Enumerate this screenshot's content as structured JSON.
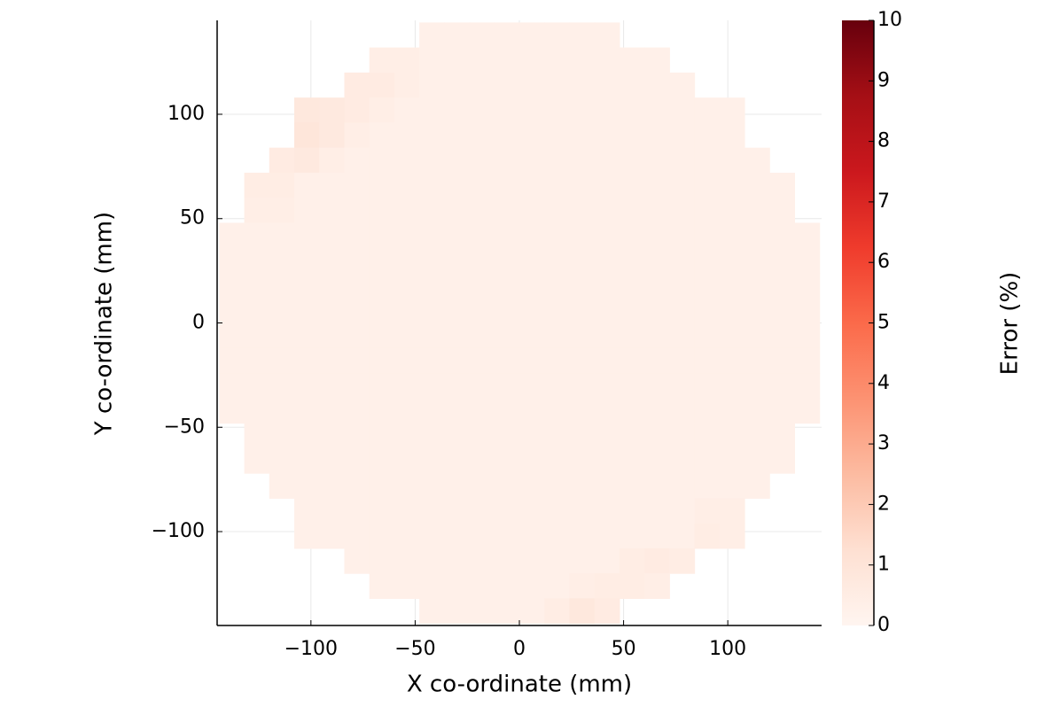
{
  "chart_data": {
    "type": "heatmap",
    "x_label": "X co-ordinate (mm)",
    "y_label": "Y co-ordinate (mm)",
    "colorbar_label": "Error (%)",
    "x": [
      -138,
      -126,
      -114,
      -102,
      -90,
      -78,
      -66,
      -54,
      -42,
      -30,
      -18,
      -6,
      6,
      18,
      30,
      42,
      54,
      66,
      78,
      90,
      102,
      114,
      126,
      138
    ],
    "y": [
      138,
      126,
      114,
      102,
      90,
      78,
      66,
      54,
      42,
      30,
      18,
      6,
      -6,
      -18,
      -30,
      -42,
      -54,
      -66,
      -78,
      -90,
      -102,
      -114,
      -126,
      -138
    ],
    "z": [
      [
        null,
        null,
        null,
        null,
        null,
        null,
        null,
        null,
        0.3,
        0.3,
        0.3,
        0.3,
        0.3,
        0.3,
        0.3,
        0.3,
        null,
        null,
        null,
        null,
        null,
        null,
        null,
        null
      ],
      [
        null,
        null,
        null,
        null,
        null,
        null,
        0.4,
        0.4,
        0.3,
        0.3,
        0.3,
        0.3,
        0.3,
        0.3,
        0.3,
        0.3,
        0.3,
        0.3,
        null,
        null,
        null,
        null,
        null,
        null
      ],
      [
        null,
        null,
        null,
        null,
        null,
        0.6,
        0.6,
        0.4,
        0.3,
        0.3,
        0.3,
        0.3,
        0.3,
        0.3,
        0.3,
        0.3,
        0.3,
        0.3,
        0.3,
        null,
        null,
        null,
        null,
        null
      ],
      [
        null,
        null,
        null,
        0.8,
        0.7,
        0.6,
        0.4,
        0.3,
        0.3,
        0.3,
        0.3,
        0.3,
        0.3,
        0.3,
        0.3,
        0.3,
        0.3,
        0.3,
        0.3,
        0.3,
        0.3,
        null,
        null,
        null
      ],
      [
        null,
        null,
        null,
        0.9,
        0.7,
        0.4,
        0.3,
        0.3,
        0.3,
        0.3,
        0.3,
        0.3,
        0.3,
        0.3,
        0.3,
        0.3,
        0.3,
        0.3,
        0.3,
        0.3,
        0.3,
        null,
        null,
        null
      ],
      [
        null,
        null,
        0.6,
        0.7,
        0.4,
        0.3,
        0.3,
        0.3,
        0.3,
        0.3,
        0.3,
        0.3,
        0.3,
        0.3,
        0.3,
        0.3,
        0.3,
        0.3,
        0.3,
        0.3,
        0.3,
        0.3,
        null,
        null
      ],
      [
        null,
        0.5,
        0.5,
        0.3,
        0.3,
        0.3,
        0.3,
        0.3,
        0.3,
        0.3,
        0.3,
        0.3,
        0.3,
        0.3,
        0.3,
        0.3,
        0.3,
        0.3,
        0.3,
        0.3,
        0.3,
        0.3,
        0.3,
        null
      ],
      [
        null,
        0.4,
        0.4,
        0.3,
        0.3,
        0.3,
        0.3,
        0.3,
        0.3,
        0.3,
        0.3,
        0.3,
        0.3,
        0.3,
        0.3,
        0.3,
        0.3,
        0.3,
        0.3,
        0.3,
        0.3,
        0.3,
        0.3,
        null
      ],
      [
        0.3,
        0.3,
        0.3,
        0.3,
        0.3,
        0.3,
        0.3,
        0.3,
        0.3,
        0.3,
        0.3,
        0.3,
        0.3,
        0.3,
        0.3,
        0.3,
        0.3,
        0.3,
        0.3,
        0.3,
        0.3,
        0.3,
        0.3,
        0.3
      ],
      [
        0.3,
        0.3,
        0.3,
        0.3,
        0.3,
        0.3,
        0.3,
        0.3,
        0.3,
        0.3,
        0.3,
        0.3,
        0.3,
        0.3,
        0.3,
        0.3,
        0.3,
        0.3,
        0.3,
        0.3,
        0.3,
        0.3,
        0.3,
        0.3
      ],
      [
        0.3,
        0.3,
        0.3,
        0.3,
        0.3,
        0.3,
        0.3,
        0.3,
        0.3,
        0.3,
        0.3,
        0.3,
        0.3,
        0.3,
        0.3,
        0.3,
        0.3,
        0.3,
        0.3,
        0.3,
        0.3,
        0.3,
        0.3,
        0.3
      ],
      [
        0.3,
        0.3,
        0.3,
        0.3,
        0.3,
        0.3,
        0.3,
        0.3,
        0.3,
        0.3,
        0.3,
        0.3,
        0.3,
        0.3,
        0.3,
        0.3,
        0.3,
        0.3,
        0.3,
        0.3,
        0.3,
        0.3,
        0.3,
        0.3
      ],
      [
        0.3,
        0.3,
        0.3,
        0.3,
        0.3,
        0.3,
        0.3,
        0.3,
        0.3,
        0.3,
        0.3,
        0.3,
        0.3,
        0.3,
        0.3,
        0.3,
        0.3,
        0.3,
        0.3,
        0.3,
        0.3,
        0.3,
        0.3,
        0.3
      ],
      [
        0.3,
        0.3,
        0.3,
        0.3,
        0.3,
        0.3,
        0.3,
        0.3,
        0.3,
        0.3,
        0.3,
        0.3,
        0.3,
        0.3,
        0.3,
        0.3,
        0.3,
        0.3,
        0.3,
        0.3,
        0.3,
        0.3,
        0.3,
        0.3
      ],
      [
        0.3,
        0.3,
        0.3,
        0.3,
        0.3,
        0.3,
        0.3,
        0.3,
        0.3,
        0.3,
        0.3,
        0.3,
        0.3,
        0.3,
        0.3,
        0.3,
        0.3,
        0.3,
        0.3,
        0.3,
        0.3,
        0.3,
        0.3,
        0.3
      ],
      [
        0.3,
        0.3,
        0.3,
        0.3,
        0.3,
        0.3,
        0.3,
        0.3,
        0.3,
        0.3,
        0.3,
        0.3,
        0.3,
        0.3,
        0.3,
        0.3,
        0.3,
        0.3,
        0.3,
        0.3,
        0.3,
        0.3,
        0.3,
        0.3
      ],
      [
        null,
        0.3,
        0.3,
        0.3,
        0.3,
        0.3,
        0.3,
        0.3,
        0.3,
        0.3,
        0.3,
        0.3,
        0.3,
        0.3,
        0.3,
        0.3,
        0.3,
        0.3,
        0.3,
        0.3,
        0.3,
        0.3,
        0.3,
        null
      ],
      [
        null,
        0.3,
        0.3,
        0.3,
        0.3,
        0.3,
        0.3,
        0.3,
        0.3,
        0.3,
        0.3,
        0.3,
        0.3,
        0.3,
        0.3,
        0.3,
        0.3,
        0.3,
        0.3,
        0.3,
        0.3,
        0.3,
        0.3,
        null
      ],
      [
        null,
        null,
        0.3,
        0.3,
        0.3,
        0.3,
        0.3,
        0.3,
        0.3,
        0.3,
        0.3,
        0.3,
        0.3,
        0.3,
        0.3,
        0.3,
        0.3,
        0.3,
        0.3,
        0.3,
        0.3,
        0.3,
        null,
        null
      ],
      [
        null,
        null,
        null,
        0.3,
        0.3,
        0.3,
        0.3,
        0.3,
        0.3,
        0.3,
        0.3,
        0.3,
        0.3,
        0.3,
        0.3,
        0.3,
        0.3,
        0.3,
        0.3,
        0.4,
        0.4,
        null,
        null,
        null
      ],
      [
        null,
        null,
        null,
        0.3,
        0.3,
        0.3,
        0.3,
        0.3,
        0.3,
        0.3,
        0.3,
        0.3,
        0.3,
        0.3,
        0.3,
        0.3,
        0.3,
        0.3,
        0.3,
        0.5,
        0.4,
        null,
        null,
        null
      ],
      [
        null,
        null,
        null,
        null,
        null,
        0.3,
        0.3,
        0.3,
        0.3,
        0.3,
        0.3,
        0.3,
        0.3,
        0.3,
        0.3,
        0.3,
        0.5,
        0.6,
        0.5,
        null,
        null,
        null,
        null,
        null
      ],
      [
        null,
        null,
        null,
        null,
        null,
        null,
        0.3,
        0.3,
        0.3,
        0.3,
        0.3,
        0.3,
        0.3,
        0.3,
        0.4,
        0.5,
        0.5,
        0.4,
        null,
        null,
        null,
        null,
        null,
        null
      ],
      [
        null,
        null,
        null,
        null,
        null,
        null,
        null,
        null,
        0.3,
        0.3,
        0.3,
        0.3,
        0.3,
        0.5,
        0.8,
        0.6,
        null,
        null,
        null,
        null,
        null,
        null,
        null,
        null
      ]
    ],
    "cell_size": 12,
    "xlim": [
      -145,
      145
    ],
    "ylim": [
      -145,
      145
    ],
    "xticks": [
      {
        "value": -100,
        "label": "−100"
      },
      {
        "value": -50,
        "label": "−50"
      },
      0,
      50,
      100
    ],
    "yticks": [
      {
        "value": -100,
        "label": "−100"
      },
      {
        "value": -50,
        "label": "−50"
      },
      0,
      50,
      100
    ],
    "clim": [
      0,
      10
    ],
    "cticks": [
      0,
      1,
      2,
      3,
      4,
      5,
      6,
      7,
      8,
      9,
      10
    ],
    "colormap": [
      "#fff5f0",
      "#fee0d2",
      "#fcbba1",
      "#fc9272",
      "#fb6a4a",
      "#ef3b2c",
      "#cb181d",
      "#a50f15",
      "#67000d"
    ],
    "grid": true
  }
}
